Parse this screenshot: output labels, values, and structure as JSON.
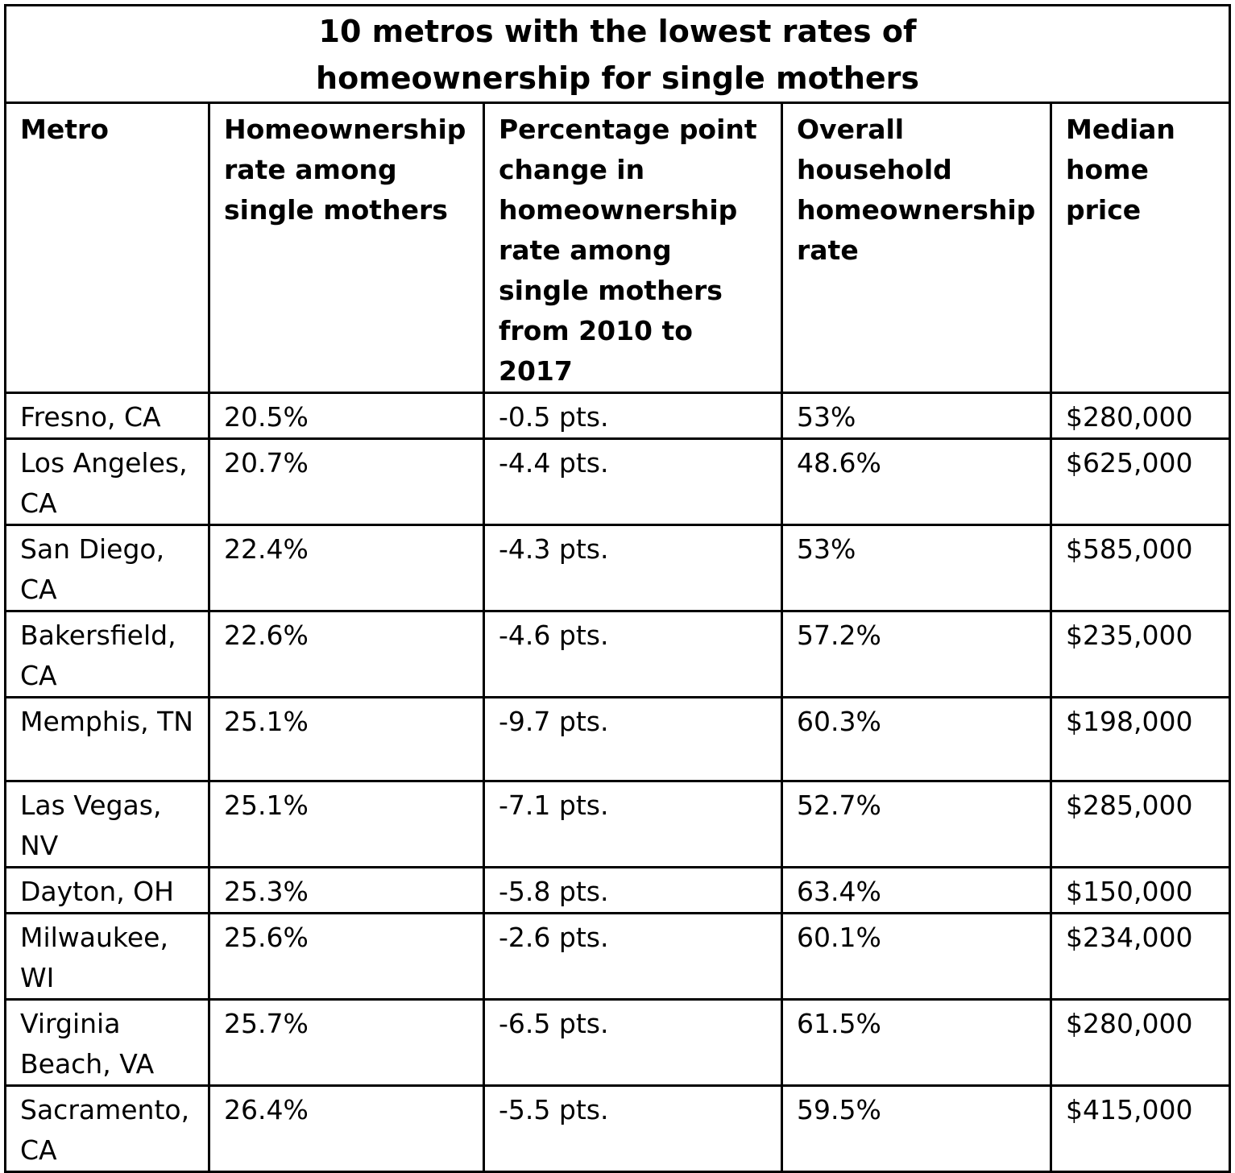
{
  "chart_data": {
    "type": "table",
    "title": "10 metros with the lowest rates of homeownership for single mothers",
    "title_lines": [
      "10 metros with the lowest rates of",
      "homeownership for single mothers"
    ],
    "columns": [
      "Metro",
      "Homeownership rate among single mothers",
      "Percentage point change in homeownership rate among single mothers from 2010 to 2017",
      "Overall household homeownership rate",
      "Median home price"
    ],
    "rows": [
      [
        "Fresno, CA",
        "20.5%",
        "-0.5 pts.",
        "53%",
        "$280,000"
      ],
      [
        "Los Angeles, CA",
        "20.7%",
        "-4.4 pts.",
        "48.6%",
        "$625,000"
      ],
      [
        "San Diego, CA",
        "22.4%",
        "-4.3 pts.",
        "53%",
        "$585,000"
      ],
      [
        "Bakersfield, CA",
        "22.6%",
        "-4.6 pts.",
        "57.2%",
        "$235,000"
      ],
      [
        "Memphis, TN",
        "25.1%",
        "-9.7 pts.",
        "60.3%",
        "$198,000"
      ],
      [
        "Las Vegas, NV",
        "25.1%",
        "-7.1 pts.",
        "52.7%",
        "$285,000"
      ],
      [
        "Dayton, OH",
        "25.3%",
        "-5.8 pts.",
        "63.4%",
        "$150,000"
      ],
      [
        "Milwaukee, WI",
        "25.6%",
        "-2.6 pts.",
        "60.1%",
        "$234,000"
      ],
      [
        "Virginia Beach, VA",
        "25.7%",
        "-6.5 pts.",
        "61.5%",
        "$280,000"
      ],
      [
        "Sacramento, CA",
        "26.4%",
        "-5.5 pts.",
        "59.5%",
        "$415,000"
      ]
    ]
  }
}
